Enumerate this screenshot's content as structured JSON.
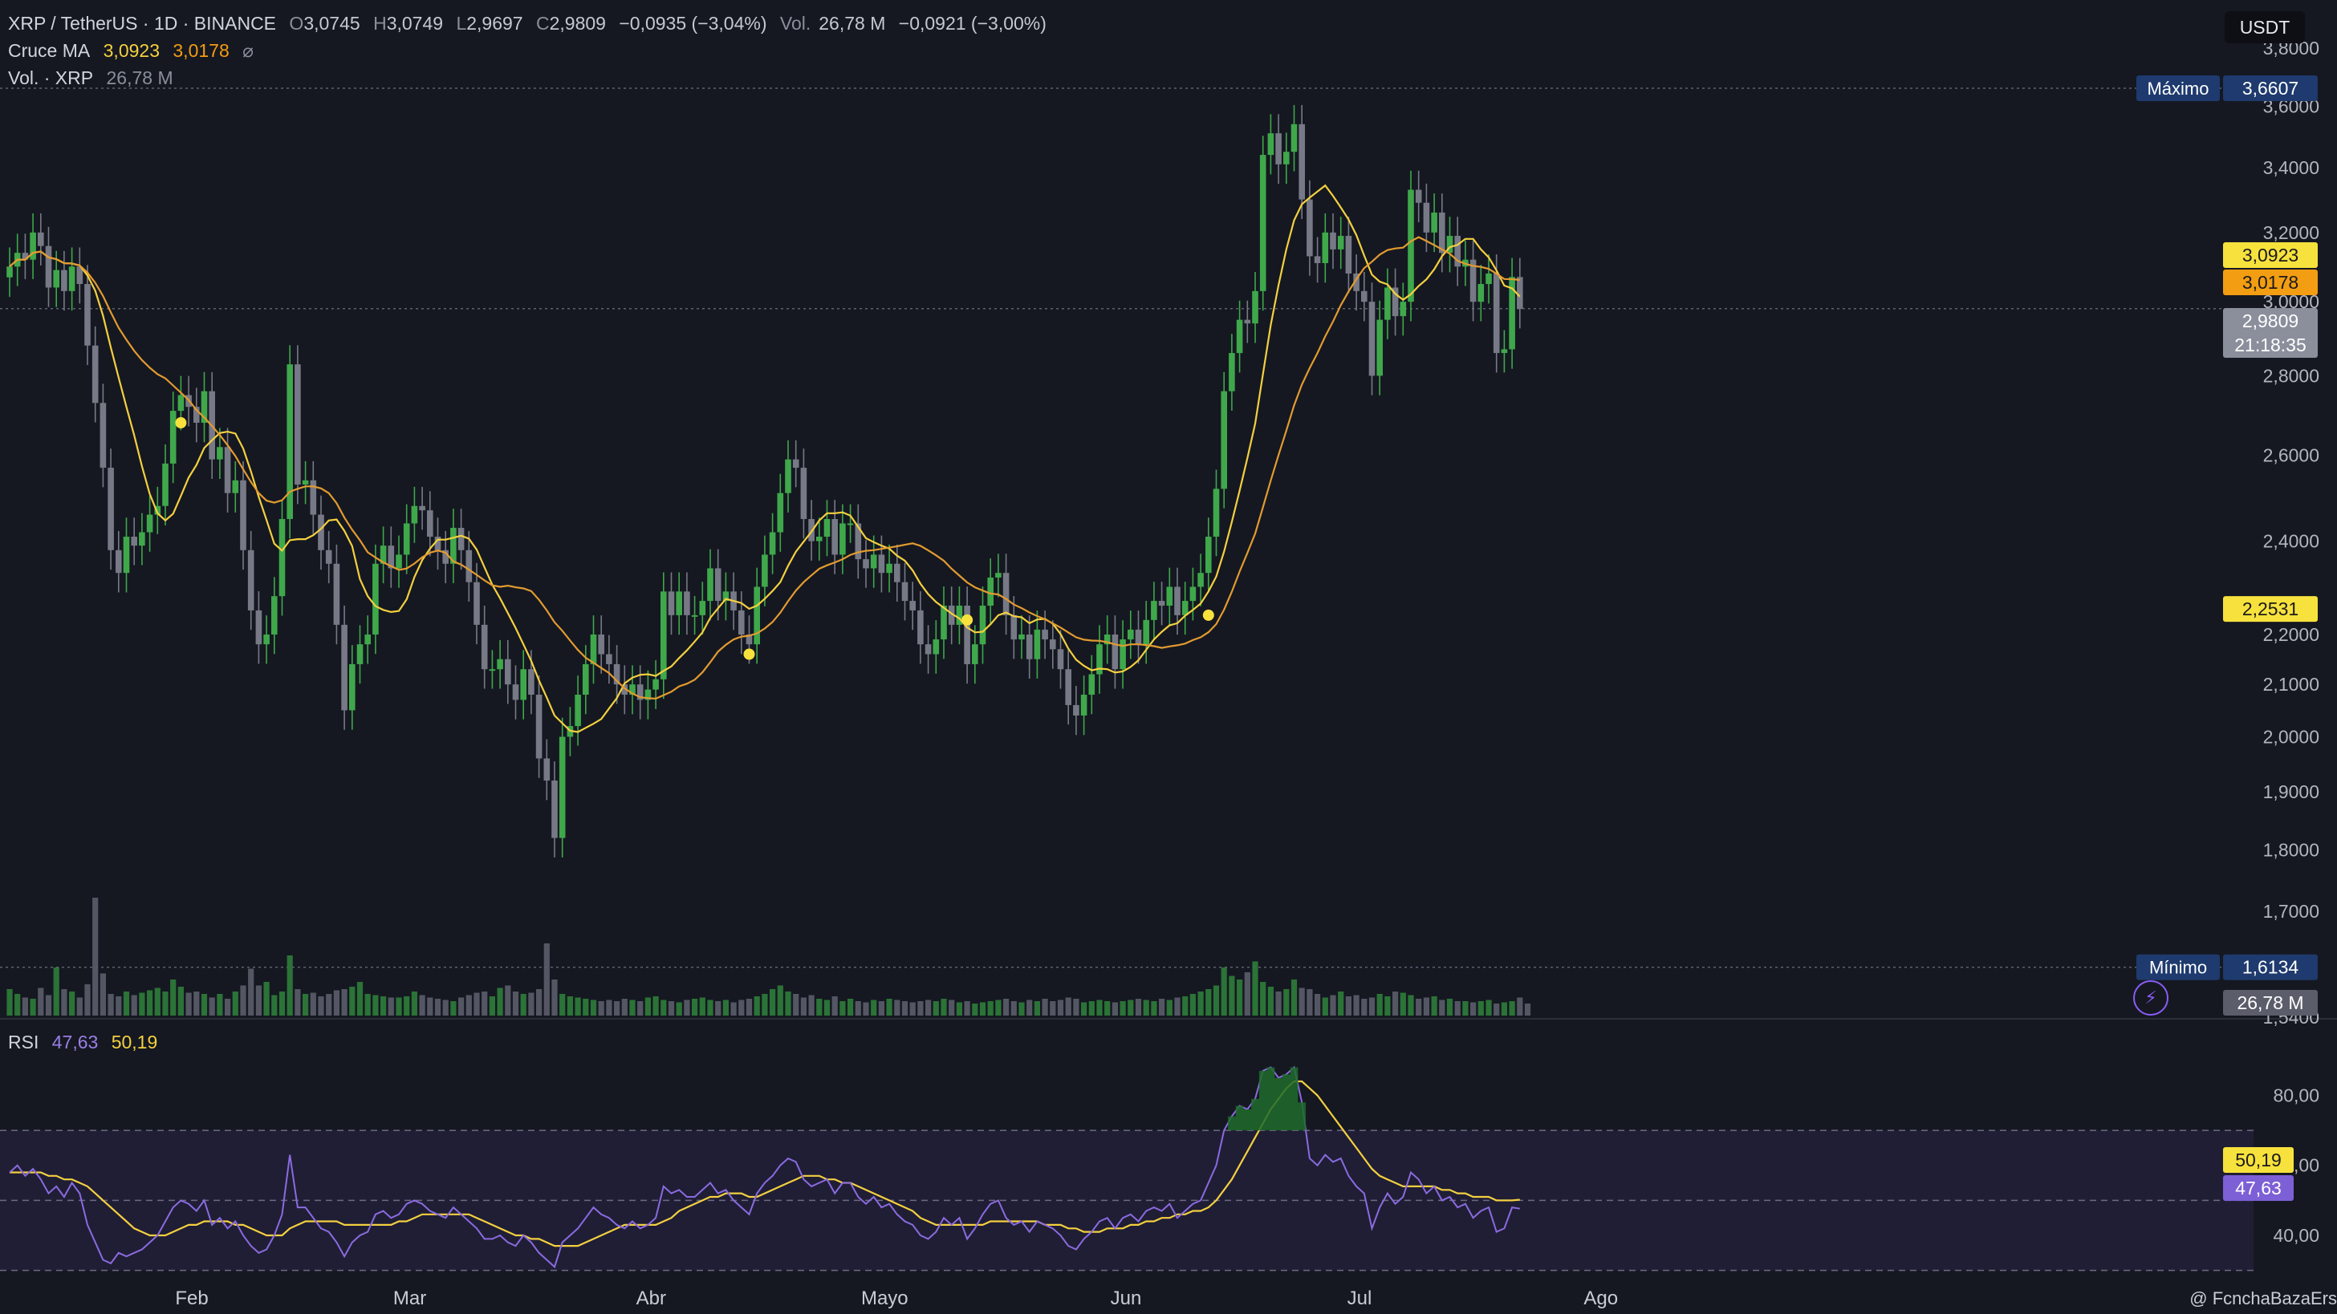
{
  "header": {
    "symbol": "XRP / TetherUS · 1D · BINANCE",
    "open_label": "O",
    "open": "3,0745",
    "high_label": "H",
    "high": "3,0749",
    "low_label": "L",
    "low": "2,9697",
    "close_label": "C",
    "close": "2,9809",
    "change": "−0,0935 (−3,04%)",
    "vol_label": "Vol.",
    "vol": "26,78 M",
    "vol_change": "−0,0921 (−3,00%)",
    "ma_label": "Cruce MA",
    "ma_fast": "3,0923",
    "ma_slow": "3,0178",
    "ma_icon": "hidden-eye-icon",
    "volume_label": "Vol. · XRP",
    "volume_value": "26,78 M"
  },
  "currency": "USDT",
  "rsi_header": {
    "label": "RSI",
    "rsi": "47,63",
    "ma": "50,19"
  },
  "footer": {
    "text": "@ F​​c​​nchaBazaErs"
  },
  "colors": {
    "up": "#3fa84b",
    "down": "#777a86",
    "ma_fast": "#f4d03f",
    "ma_slow": "#e39b2f",
    "rsi": "#8a6be0",
    "rsi_ma": "#f4d03f",
    "bg": "#151821"
  },
  "chart_data": [
    {
      "type": "candlestick",
      "title": "XRP / TetherUS · 1D · BINANCE",
      "ylim": [
        1.54,
        3.8
      ],
      "y_scale": "log",
      "y_ticks": [
        {
          "v": 3.8,
          "label": "3,8000"
        },
        {
          "v": 3.6,
          "label": "3,6000"
        },
        {
          "v": 3.4,
          "label": "3,4000"
        },
        {
          "v": 3.2,
          "label": "3,2000"
        },
        {
          "v": 3.0,
          "label": "3,0000"
        },
        {
          "v": 2.8,
          "label": "2,8000"
        },
        {
          "v": 2.6,
          "label": "2,6000"
        },
        {
          "v": 2.4,
          "label": "2,4000"
        },
        {
          "v": 2.2,
          "label": "2,2000"
        },
        {
          "v": 2.1,
          "label": "2,1000"
        },
        {
          "v": 2.0,
          "label": "2,0000"
        },
        {
          "v": 1.9,
          "label": "1,9000"
        },
        {
          "v": 1.8,
          "label": "1,8000"
        },
        {
          "v": 1.7,
          "label": "1,7000"
        },
        {
          "v": 1.54,
          "label": "1,5400"
        }
      ],
      "x_labels": [
        {
          "day": 10,
          "label": "Feb"
        },
        {
          "day": 38,
          "label": "Mar"
        },
        {
          "day": 69,
          "label": "Abr"
        },
        {
          "day": 99,
          "label": "Mayo"
        },
        {
          "day": 130,
          "label": "Jun"
        },
        {
          "day": 160,
          "label": "Jul"
        },
        {
          "day": 191,
          "label": "Ago"
        }
      ],
      "price_badges": [
        {
          "label": "Máximo",
          "value": "3,6607",
          "v": 3.6607
        },
        {
          "label": "",
          "value": "3,0923",
          "v": 3.0923,
          "kind": "ma_fast"
        },
        {
          "label": "",
          "value": "3,0178",
          "v": 3.0178,
          "kind": "ma_slow"
        },
        {
          "label": "",
          "value": "2,9809",
          "sub": "21:18:35",
          "v": 2.9809,
          "kind": "last"
        },
        {
          "label": "",
          "value": "2,2531",
          "v": 2.2531,
          "kind": "ma_fast"
        },
        {
          "label": "Mínimo",
          "value": "1,6134",
          "v": 1.6134
        }
      ],
      "volume_badge": "26,78 M",
      "ma_crosses": [
        {
          "day": 22,
          "value": 2.68
        },
        {
          "day": 95,
          "value": 2.16
        },
        {
          "day": 123,
          "value": 2.23
        },
        {
          "day": 154,
          "value": 2.24
        }
      ],
      "close_series": [
        3.1,
        3.14,
        3.12,
        3.2,
        3.16,
        3.04,
        3.09,
        3.03,
        3.1,
        3.05,
        2.88,
        2.73,
        2.57,
        2.38,
        2.33,
        2.41,
        2.39,
        2.42,
        2.46,
        2.48,
        2.58,
        2.71,
        2.75,
        2.72,
        2.68,
        2.76,
        2.59,
        2.62,
        2.51,
        2.54,
        2.38,
        2.25,
        2.18,
        2.2,
        2.28,
        2.45,
        2.83,
        2.53,
        2.54,
        2.46,
        2.38,
        2.35,
        2.22,
        2.05,
        2.14,
        2.18,
        2.2,
        2.35,
        2.39,
        2.34,
        2.37,
        2.44,
        2.48,
        2.47,
        2.41,
        2.38,
        2.35,
        2.43,
        2.38,
        2.31,
        2.22,
        2.13,
        2.13,
        2.15,
        2.1,
        2.07,
        2.13,
        2.08,
        1.96,
        1.92,
        1.82,
        2.0,
        2.02,
        2.08,
        2.14,
        2.2,
        2.16,
        2.14,
        2.1,
        2.08,
        2.1,
        2.07,
        2.09,
        2.11,
        2.29,
        2.24,
        2.29,
        2.24,
        2.24,
        2.27,
        2.34,
        2.27,
        2.29,
        2.25,
        2.2,
        2.18,
        2.3,
        2.37,
        2.42,
        2.51,
        2.59,
        2.57,
        2.45,
        2.4,
        2.41,
        2.45,
        2.37,
        2.44,
        2.44,
        2.36,
        2.34,
        2.37,
        2.33,
        2.35,
        2.31,
        2.27,
        2.25,
        2.18,
        2.16,
        2.19,
        2.26,
        2.22,
        2.26,
        2.14,
        2.18,
        2.26,
        2.32,
        2.33,
        2.24,
        2.19,
        2.2,
        2.15,
        2.21,
        2.19,
        2.17,
        2.13,
        2.06,
        2.04,
        2.08,
        2.12,
        2.18,
        2.2,
        2.13,
        2.19,
        2.21,
        2.18,
        2.23,
        2.27,
        2.26,
        2.3,
        2.24,
        2.27,
        2.3,
        2.33,
        2.41,
        2.52,
        2.76,
        2.86,
        2.95,
        2.94,
        3.03,
        3.44,
        3.51,
        3.41,
        3.45,
        3.54,
        3.3,
        3.13,
        3.11,
        3.2,
        3.15,
        3.19,
        3.08,
        3.03,
        3.0,
        2.8,
        2.95,
        3.04,
        2.96,
        3.0,
        3.33,
        3.29,
        3.2,
        3.26,
        3.14,
        3.19,
        3.1,
        3.12,
        3.0,
        3.05,
        3.08,
        2.86,
        2.87,
        3.07,
        2.98
      ],
      "volume_series": [
        22,
        18,
        15,
        14,
        23,
        17,
        40,
        22,
        20,
        15,
        26,
        98,
        35,
        18,
        16,
        20,
        17,
        19,
        21,
        23,
        20,
        30,
        24,
        19,
        20,
        18,
        15,
        18,
        14,
        20,
        25,
        39,
        25,
        28,
        17,
        20,
        50,
        22,
        18,
        19,
        16,
        18,
        21,
        22,
        24,
        28,
        18,
        17,
        16,
        15,
        15,
        16,
        20,
        17,
        15,
        14,
        13,
        12,
        15,
        17,
        19,
        20,
        16,
        23,
        25,
        20,
        18,
        19,
        22,
        60,
        30,
        18,
        16,
        15,
        14,
        13,
        12,
        13,
        12,
        14,
        13,
        12,
        15,
        16,
        13,
        12,
        11,
        13,
        14,
        15,
        13,
        12,
        13,
        11,
        13,
        14,
        16,
        18,
        22,
        25,
        20,
        18,
        15,
        17,
        14,
        13,
        16,
        12,
        14,
        12,
        11,
        13,
        12,
        14,
        13,
        12,
        11,
        12,
        13,
        12,
        14,
        13,
        11,
        12,
        10,
        11,
        12,
        13,
        14,
        12,
        11,
        13,
        12,
        14,
        12,
        13,
        15,
        14,
        11,
        12,
        13,
        12,
        11,
        12,
        13,
        14,
        13,
        12,
        14,
        13,
        15,
        16,
        18,
        20,
        22,
        25,
        40,
        33,
        30,
        36,
        45,
        28,
        24,
        20,
        22,
        30,
        23,
        22,
        18,
        15,
        17,
        20,
        16,
        17,
        14,
        15,
        18,
        16,
        20,
        19,
        17,
        14,
        15,
        16,
        13,
        14,
        12,
        12,
        11,
        12,
        13,
        10,
        11,
        12,
        15,
        10
      ]
    },
    {
      "type": "line",
      "title": "RSI",
      "ylim": [
        29,
        95
      ],
      "y_ticks": [
        {
          "v": 80,
          "label": "80,00"
        },
        {
          "v": 60,
          "label": "60,00"
        },
        {
          "v": 40,
          "label": "40,00"
        }
      ],
      "bands": {
        "upper": 70,
        "middle": 50,
        "lower": 30
      },
      "series": [
        {
          "name": "RSI",
          "last": 47.63,
          "values": [
            58,
            60,
            57,
            59,
            56,
            52,
            54,
            51,
            55,
            52,
            43,
            38,
            33,
            32,
            35,
            34,
            35,
            36,
            38,
            40,
            44,
            48,
            50,
            49,
            47,
            50,
            43,
            45,
            42,
            44,
            40,
            37,
            35,
            36,
            40,
            46,
            63,
            48,
            48,
            45,
            42,
            41,
            38,
            34,
            38,
            40,
            41,
            46,
            47,
            45,
            46,
            49,
            50,
            49,
            47,
            46,
            45,
            48,
            46,
            44,
            42,
            39,
            39,
            40,
            38,
            37,
            40,
            38,
            35,
            33,
            31,
            38,
            40,
            42,
            45,
            48,
            46,
            45,
            43,
            42,
            44,
            42,
            43,
            45,
            54,
            52,
            53,
            51,
            51,
            53,
            55,
            52,
            53,
            50,
            48,
            46,
            52,
            55,
            57,
            60,
            62,
            61,
            56,
            54,
            55,
            56,
            52,
            55,
            55,
            51,
            49,
            51,
            48,
            49,
            46,
            44,
            43,
            40,
            39,
            41,
            45,
            43,
            45,
            39,
            42,
            46,
            49,
            50,
            45,
            43,
            44,
            41,
            44,
            43,
            42,
            40,
            37,
            36,
            39,
            41,
            44,
            45,
            42,
            45,
            46,
            44,
            47,
            48,
            47,
            49,
            45,
            47,
            49,
            50,
            55,
            60,
            70,
            74,
            77,
            76,
            79,
            87,
            88,
            85,
            86,
            88,
            78,
            62,
            60,
            63,
            61,
            62,
            57,
            54,
            52,
            42,
            48,
            52,
            49,
            51,
            58,
            56,
            52,
            54,
            50,
            51,
            48,
            49,
            45,
            47,
            48,
            41,
            42,
            48,
            47.63
          ]
        },
        {
          "name": "RSI-based MA",
          "last": 50.19,
          "values": [
            58,
            58,
            58,
            58,
            58,
            57,
            57,
            56,
            56,
            55,
            54,
            52,
            50,
            48,
            46,
            44,
            42,
            41,
            40,
            40,
            40,
            41,
            42,
            43,
            43,
            44,
            44,
            44,
            44,
            43,
            43,
            42,
            41,
            40,
            40,
            40,
            42,
            43,
            44,
            44,
            44,
            44,
            44,
            43,
            43,
            43,
            43,
            43,
            43,
            43,
            44,
            44,
            45,
            46,
            46,
            46,
            46,
            46,
            46,
            46,
            45,
            44,
            43,
            42,
            41,
            40,
            40,
            39,
            39,
            38,
            37,
            37,
            37,
            37,
            38,
            39,
            40,
            41,
            42,
            43,
            43,
            43,
            43,
            43,
            44,
            45,
            47,
            48,
            49,
            50,
            51,
            51,
            52,
            52,
            52,
            51,
            51,
            52,
            53,
            54,
            55,
            56,
            57,
            57,
            57,
            56,
            56,
            55,
            55,
            54,
            53,
            52,
            51,
            50,
            49,
            48,
            47,
            45,
            44,
            43,
            43,
            43,
            43,
            43,
            43,
            43,
            44,
            44,
            44,
            44,
            44,
            44,
            44,
            43,
            43,
            43,
            42,
            42,
            41,
            41,
            41,
            42,
            42,
            42,
            43,
            43,
            44,
            44,
            45,
            45,
            46,
            46,
            47,
            47,
            48,
            50,
            53,
            56,
            60,
            64,
            68,
            72,
            76,
            79,
            82,
            84,
            84,
            82,
            80,
            77,
            74,
            71,
            68,
            65,
            62,
            59,
            57,
            56,
            55,
            54,
            54,
            54,
            54,
            54,
            53,
            53,
            52,
            52,
            51,
            51,
            51,
            50,
            50,
            50,
            50.19
          ]
        }
      ]
    }
  ]
}
